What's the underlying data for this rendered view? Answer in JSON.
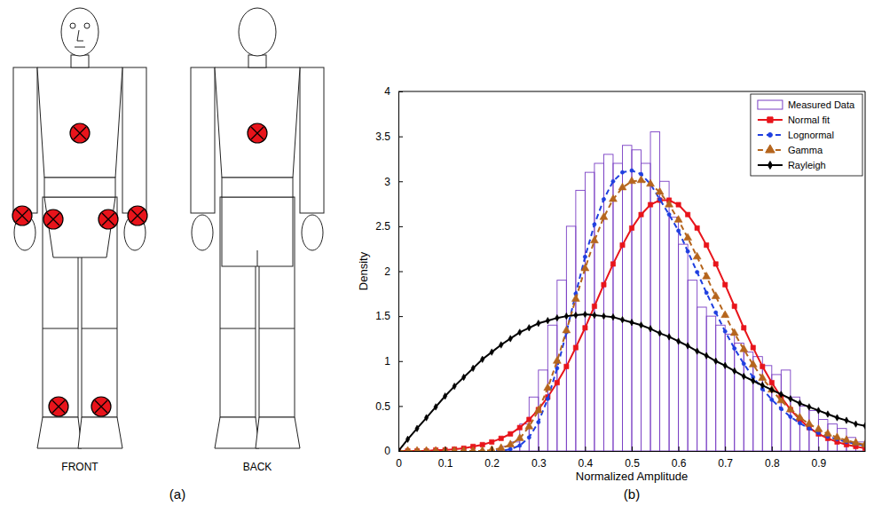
{
  "diagram": {
    "label": "(a)",
    "views": [
      "FRONT",
      "BACK"
    ]
  },
  "chart_data": {
    "type": "histogram",
    "label": "(b)",
    "xlabel": "Normalized Amplitude",
    "ylabel": "Density",
    "xlim": [
      0,
      1
    ],
    "ylim": [
      0,
      4
    ],
    "xticks": [
      0,
      0.1,
      0.2,
      0.3,
      0.4,
      0.5,
      0.6,
      0.7,
      0.8,
      0.9
    ],
    "yticks": [
      0,
      0.5,
      1,
      1.5,
      2,
      2.5,
      3,
      3.5,
      4
    ],
    "legend": "upper right",
    "series": [
      {
        "name": "Measured Data",
        "type": "histogram",
        "color": "#7a3fc4",
        "bins": [
          0.2,
          0.22,
          0.24,
          0.26,
          0.28,
          0.3,
          0.32,
          0.34,
          0.36,
          0.38,
          0.4,
          0.42,
          0.44,
          0.46,
          0.48,
          0.5,
          0.52,
          0.54,
          0.56,
          0.58,
          0.6,
          0.62,
          0.64,
          0.66,
          0.68,
          0.7,
          0.72,
          0.74,
          0.76,
          0.78,
          0.8,
          0.82,
          0.84,
          0.86,
          0.88,
          0.9,
          0.92,
          0.94,
          0.96,
          0.98,
          1
        ],
        "values": [
          0,
          0.05,
          0.1,
          0.3,
          0.6,
          0.9,
          1.4,
          1.9,
          2.5,
          2.9,
          3.1,
          3.2,
          3.3,
          3.2,
          3.4,
          3.35,
          3.2,
          3.55,
          3.0,
          2.6,
          2.3,
          1.9,
          1.6,
          1.5,
          1.4,
          1.3,
          1.2,
          1.1,
          1.05,
          0.95,
          0.85,
          0.9,
          0.6,
          0.5,
          0.45,
          0.35,
          0.3,
          0.25,
          0.15,
          0.1
        ]
      },
      {
        "name": "Normal fit",
        "type": "line",
        "color": "#e8141b",
        "marker": "square",
        "line_style": "solid",
        "x": [
          0,
          0.02,
          0.04,
          0.06,
          0.08,
          0.1,
          0.12,
          0.14,
          0.16,
          0.18,
          0.2,
          0.22,
          0.24,
          0.26,
          0.28,
          0.3,
          0.32,
          0.34,
          0.36,
          0.38,
          0.4,
          0.42,
          0.44,
          0.46,
          0.48,
          0.5,
          0.52,
          0.54,
          0.56,
          0.58,
          0.6,
          0.62,
          0.64,
          0.66,
          0.68,
          0.7,
          0.72,
          0.74,
          0.76,
          0.78,
          0.8,
          0.82,
          0.84,
          0.86,
          0.88,
          0.9,
          0.92,
          0.94,
          0.96,
          0.98,
          1
        ],
        "values": [
          0,
          0,
          0,
          0,
          0.01,
          0.01,
          0.02,
          0.03,
          0.05,
          0.07,
          0.1,
          0.14,
          0.19,
          0.26,
          0.35,
          0.46,
          0.6,
          0.76,
          0.94,
          1.15,
          1.37,
          1.61,
          1.85,
          2.08,
          2.29,
          2.48,
          2.63,
          2.74,
          2.79,
          2.79,
          2.74,
          2.63,
          2.48,
          2.29,
          2.08,
          1.85,
          1.61,
          1.37,
          1.15,
          0.94,
          0.76,
          0.6,
          0.46,
          0.35,
          0.26,
          0.19,
          0.14,
          0.1,
          0.07,
          0.05,
          0.03
        ]
      },
      {
        "name": "Lognormal",
        "type": "line",
        "color": "#1f3fe0",
        "marker": "circle",
        "line_style": "dashed",
        "x": [
          0,
          0.02,
          0.04,
          0.06,
          0.08,
          0.1,
          0.12,
          0.14,
          0.16,
          0.18,
          0.2,
          0.22,
          0.24,
          0.26,
          0.28,
          0.3,
          0.32,
          0.34,
          0.36,
          0.38,
          0.4,
          0.42,
          0.44,
          0.46,
          0.48,
          0.5,
          0.52,
          0.54,
          0.56,
          0.58,
          0.6,
          0.62,
          0.64,
          0.66,
          0.68,
          0.7,
          0.72,
          0.74,
          0.76,
          0.78,
          0.8,
          0.82,
          0.84,
          0.86,
          0.88,
          0.9,
          0.92,
          0.94,
          0.96,
          0.98,
          1
        ],
        "values": [
          0,
          0,
          0,
          0,
          0,
          0,
          0,
          0,
          0,
          0,
          0,
          0,
          0.02,
          0.06,
          0.15,
          0.32,
          0.58,
          0.92,
          1.32,
          1.75,
          2.16,
          2.52,
          2.8,
          3.0,
          3.1,
          3.12,
          3.08,
          2.97,
          2.8,
          2.63,
          2.45,
          2.22,
          1.99,
          1.76,
          1.54,
          1.33,
          1.14,
          0.97,
          0.82,
          0.69,
          0.57,
          0.47,
          0.38,
          0.31,
          0.25,
          0.2,
          0.16,
          0.13,
          0.1,
          0.08,
          0.06
        ]
      },
      {
        "name": "Gamma",
        "type": "line",
        "color": "#b5651d",
        "marker": "triangle",
        "line_style": "dashed",
        "x": [
          0,
          0.02,
          0.04,
          0.06,
          0.08,
          0.1,
          0.12,
          0.14,
          0.16,
          0.18,
          0.2,
          0.22,
          0.24,
          0.26,
          0.28,
          0.3,
          0.32,
          0.34,
          0.36,
          0.38,
          0.4,
          0.42,
          0.44,
          0.46,
          0.48,
          0.5,
          0.52,
          0.54,
          0.56,
          0.58,
          0.6,
          0.62,
          0.64,
          0.66,
          0.68,
          0.7,
          0.72,
          0.74,
          0.76,
          0.78,
          0.8,
          0.82,
          0.84,
          0.86,
          0.88,
          0.9,
          0.92,
          0.94,
          0.96,
          0.98,
          1
        ],
        "values": [
          0,
          0,
          0,
          0,
          0,
          0,
          0,
          0,
          0,
          0,
          0.01,
          0.03,
          0.07,
          0.14,
          0.27,
          0.45,
          0.7,
          1.0,
          1.34,
          1.69,
          2.03,
          2.34,
          2.6,
          2.8,
          2.93,
          3.0,
          3.01,
          2.97,
          2.88,
          2.74,
          2.57,
          2.37,
          2.16,
          1.94,
          1.72,
          1.51,
          1.31,
          1.13,
          0.96,
          0.81,
          0.68,
          0.56,
          0.46,
          0.37,
          0.3,
          0.24,
          0.19,
          0.15,
          0.12,
          0.09,
          0.07
        ]
      },
      {
        "name": "Rayleigh",
        "type": "line",
        "color": "#000000",
        "marker": "diamond",
        "line_style": "solid",
        "x": [
          0,
          0.02,
          0.04,
          0.06,
          0.08,
          0.1,
          0.12,
          0.14,
          0.16,
          0.18,
          0.2,
          0.22,
          0.24,
          0.26,
          0.28,
          0.3,
          0.32,
          0.34,
          0.36,
          0.38,
          0.4,
          0.42,
          0.44,
          0.46,
          0.48,
          0.5,
          0.52,
          0.54,
          0.56,
          0.58,
          0.6,
          0.62,
          0.64,
          0.66,
          0.68,
          0.7,
          0.72,
          0.74,
          0.76,
          0.78,
          0.8,
          0.82,
          0.84,
          0.86,
          0.88,
          0.9,
          0.92,
          0.94,
          0.96,
          0.98,
          1
        ],
        "values": [
          0,
          0.13,
          0.25,
          0.37,
          0.49,
          0.61,
          0.72,
          0.82,
          0.92,
          1.02,
          1.1,
          1.18,
          1.25,
          1.32,
          1.37,
          1.42,
          1.45,
          1.48,
          1.5,
          1.51,
          1.52,
          1.51,
          1.5,
          1.49,
          1.46,
          1.43,
          1.4,
          1.36,
          1.31,
          1.27,
          1.22,
          1.17,
          1.11,
          1.06,
          1,
          0.95,
          0.89,
          0.83,
          0.78,
          0.73,
          0.68,
          0.63,
          0.58,
          0.53,
          0.49,
          0.45,
          0.41,
          0.37,
          0.34,
          0.3,
          0.28
        ]
      }
    ]
  }
}
